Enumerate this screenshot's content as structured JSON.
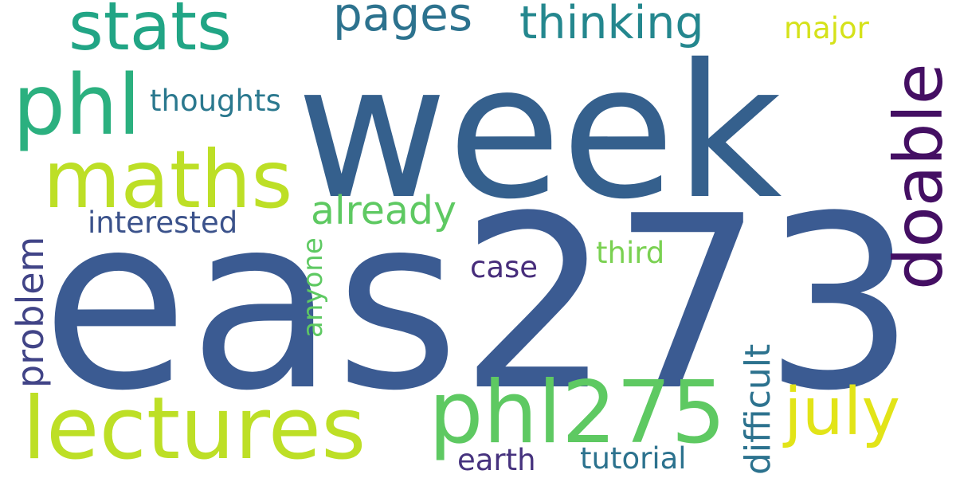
{
  "background": "#ffffff",
  "words": [
    {
      "text": "eas273",
      "color": "#3b5b92"
    },
    {
      "text": "week",
      "color": "#35608d"
    },
    {
      "text": "lectures",
      "color": "#bddf26"
    },
    {
      "text": "phl275",
      "color": "#5ec962"
    },
    {
      "text": "maths",
      "color": "#bddf26"
    },
    {
      "text": "stats",
      "color": "#21a585"
    },
    {
      "text": "phl",
      "color": "#2bb07f"
    },
    {
      "text": "doable",
      "color": "#440f63"
    },
    {
      "text": "july",
      "color": "#e2e418"
    },
    {
      "text": "pages",
      "color": "#2c728e"
    },
    {
      "text": "thinking",
      "color": "#24878e"
    },
    {
      "text": "thoughts",
      "color": "#2a788e"
    },
    {
      "text": "major",
      "color": "#d5e21a"
    },
    {
      "text": "already",
      "color": "#5ec962"
    },
    {
      "text": "interested",
      "color": "#3b528b"
    },
    {
      "text": "problem",
      "color": "#414487"
    },
    {
      "text": "anyone",
      "color": "#5ec962"
    },
    {
      "text": "case",
      "color": "#472d7b"
    },
    {
      "text": "third",
      "color": "#7ad151"
    },
    {
      "text": "difficult",
      "color": "#2c728e"
    },
    {
      "text": "earth",
      "color": "#46327e"
    },
    {
      "text": "tutorial",
      "color": "#2c728e"
    }
  ]
}
